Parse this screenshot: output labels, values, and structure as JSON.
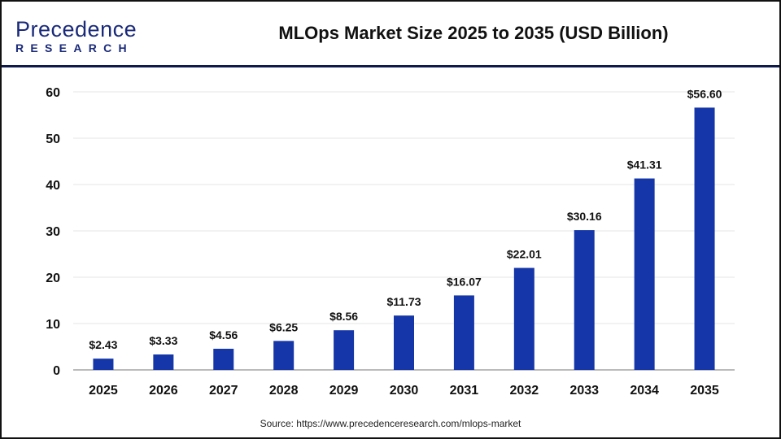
{
  "logo": {
    "main": "Precedence",
    "sub": "RESEARCH"
  },
  "header": {
    "title": "MLOps Market Size 2025 to 2035 (USD Billion)"
  },
  "source": "Source: https://www.precedenceresearch.com/mlops-market",
  "chart_data": {
    "type": "bar",
    "title": "MLOps Market Size 2025 to 2035 (USD Billion)",
    "categories": [
      "2025",
      "2026",
      "2027",
      "2028",
      "2029",
      "2030",
      "2031",
      "2032",
      "2033",
      "2034",
      "2035"
    ],
    "values": [
      2.43,
      3.33,
      4.56,
      6.25,
      8.56,
      11.73,
      16.07,
      22.01,
      30.16,
      41.31,
      56.6
    ],
    "data_labels": [
      "$2.43",
      "$3.33",
      "$4.56",
      "$6.25",
      "$8.56",
      "$11.73",
      "$16.07",
      "$22.01",
      "$30.16",
      "$41.31",
      "$56.60"
    ],
    "yticks": [
      0,
      10,
      20,
      30,
      40,
      50,
      60
    ],
    "ylim": [
      0,
      60
    ],
    "grid": true,
    "bar_color": "#1536a8",
    "xlabel": "",
    "ylabel": ""
  }
}
